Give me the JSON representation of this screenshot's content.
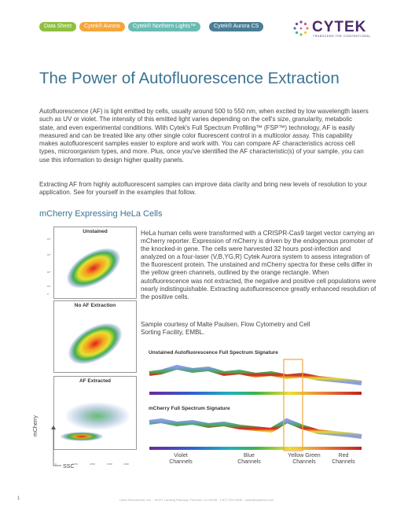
{
  "header": {
    "tags": [
      {
        "label": "Data Sheet",
        "color": "#8fc041"
      },
      {
        "label": "Cytek® Aurora",
        "color": "#f4a63c"
      },
      {
        "label": "Cytek® Northern Lights™",
        "color": "#6abcb3"
      },
      {
        "label": "Cytek® Aurora CS",
        "color": "#4a7d96"
      }
    ],
    "logo_text": "CYTEK",
    "logo_tagline": "TRANSCEND THE CONVENTIONAL"
  },
  "title": "The Power of Autofluorescence Extraction",
  "intro_paragraphs": [
    "Autofluorescence (AF) is light emitted by cells, usually around 500 to 550 nm, when excited by low wavelength lasers such as UV or violet. The intensity of this emitted light varies depending on the cell's size, granularity, metabolic state, and even experimental conditions. With Cytek's Full Spectrum Profiling™ (FSP™) technology, AF is easily measured and can be treated like any other single color fluorescent control in a multicolor assay. This capability makes autofluorescent samples easier to explore and work with.  You can compare AF characteristics across cell types, microorganism types, and more. Plus, once you've identified the AF characteristic(s) of your sample, you can use this information to design higher quality panels.",
    "Extracting AF from highly autofluorescent samples can improve data clarity and bring new levels of resolution to your application. See for yourself in the examples that follow."
  ],
  "section": {
    "title": "mCherry Expressing HeLa Cells",
    "body": "HeLa human cells were transformed with a CRISPR-Cas9 target vector carrying an mCherry reporter. Expression of mCherry is driven by the endogenous promoter of the knocked-in gene. The cells were harvested 32 hours post-infection and analyzed on a four-laser (V,B,YG,R) Cytek Aurora system to assess integration of the fluorescent protein. The unstained and mCherry spectra for these cells differ in the yellow green channels, outlined by the orange rectangle. When autofluorescence was not extracted, the negative and positive cell populations were nearly indistinguishable. Extracting autofluorescence greatly enhanced resolution of the positive cells.",
    "credit": "Sample courtesy of Malte Paulsen, Flow Cytometry and Cell Sorting Facility, EMBL."
  },
  "plots": {
    "panels": [
      "Unstained",
      "No AF Extraction",
      "AF Extracted"
    ],
    "y_axis_label": "mCherry",
    "x_axis_label": "SSC",
    "y_ticks": [
      "10⁶",
      "10⁵",
      "10⁴",
      "10³",
      "0"
    ],
    "x_ticks": [
      "0",
      "1.0M",
      "2.0M",
      "3.0M",
      "4.0M"
    ]
  },
  "signatures": {
    "unstained_title": "Unstained Autofluorescence Full Spectrum Signature",
    "mcherry_title": "mCherry Full Spectrum Signature",
    "channels": [
      {
        "line1": "Violet",
        "line2": "Channels"
      },
      {
        "line1": "Blue",
        "line2": "Channels"
      },
      {
        "line1": "Yellow Green",
        "line2": "Channels"
      },
      {
        "line1": "Red",
        "line2": "Channels"
      }
    ],
    "highlight_color": "#f4a63c"
  },
  "footer": {
    "page_number": "1",
    "address": "Cytek Biosciences, Inc.  ·  46107 Landing Parkway, Fremont, CA 94538  ·  1-877-922-9835  ·  sales@cytekbio.com"
  }
}
